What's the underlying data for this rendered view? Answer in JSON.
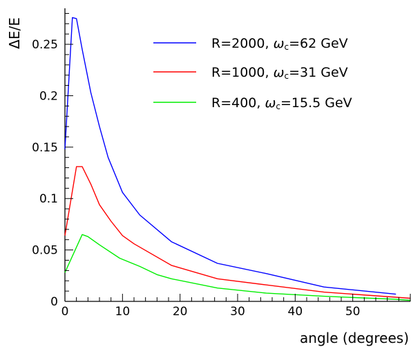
{
  "chart_data": {
    "type": "line",
    "title": "",
    "xlabel": "angle (degrees)",
    "ylabel": "ΔE/E",
    "xlim": [
      0,
      60
    ],
    "ylim": [
      0,
      0.285
    ],
    "x_ticks": [
      0,
      10,
      20,
      30,
      40,
      50
    ],
    "x_tick_labels": [
      "0",
      "10",
      "20",
      "30",
      "40",
      "50"
    ],
    "y_ticks": [
      0,
      0.05,
      0.1,
      0.15,
      0.2,
      0.25
    ],
    "y_tick_labels": [
      "0",
      "0.05",
      "0.1",
      "0.15",
      "0.2",
      "0.25"
    ],
    "grid": false,
    "legend_position": "top-right",
    "series": [
      {
        "name": "R=2000, ωc=62 GeV",
        "legend_main": "R=2000, ",
        "legend_omega": "ω",
        "legend_sub": "c",
        "legend_tail": "=62 GeV",
        "color": "#0000ff",
        "x": [
          0,
          1.3,
          2.0,
          3.0,
          4.5,
          6.0,
          7.5,
          10,
          13,
          18.5,
          26.5,
          35,
          45,
          57.5
        ],
        "y": [
          0.148,
          0.276,
          0.275,
          0.245,
          0.203,
          0.17,
          0.14,
          0.106,
          0.084,
          0.058,
          0.037,
          0.027,
          0.014,
          0.007
        ]
      },
      {
        "name": "R=1000, ωc=31 GeV",
        "legend_main": "R=1000, ",
        "legend_omega": "ω",
        "legend_sub": "c",
        "legend_tail": "=31 GeV",
        "color": "#ff0000",
        "x": [
          0,
          2.0,
          3.0,
          4.5,
          6.0,
          8.0,
          10,
          12,
          18.5,
          26.5,
          35,
          45,
          57.5,
          60
        ],
        "y": [
          0.064,
          0.131,
          0.131,
          0.114,
          0.094,
          0.078,
          0.064,
          0.056,
          0.035,
          0.022,
          0.016,
          0.009,
          0.004,
          0.003
        ]
      },
      {
        "name": "R=400, ωc=15.5 GeV",
        "legend_main": "R=400, ",
        "legend_omega": "ω",
        "legend_sub": "c",
        "legend_tail": "=15.5 GeV",
        "color": "#00ee00",
        "x": [
          0,
          3.0,
          4.0,
          6.0,
          9.5,
          13,
          16,
          18.5,
          26.5,
          35,
          45,
          57.5,
          60
        ],
        "y": [
          0.028,
          0.065,
          0.063,
          0.055,
          0.042,
          0.034,
          0.026,
          0.022,
          0.013,
          0.008,
          0.005,
          0.002,
          0.001
        ]
      }
    ]
  }
}
